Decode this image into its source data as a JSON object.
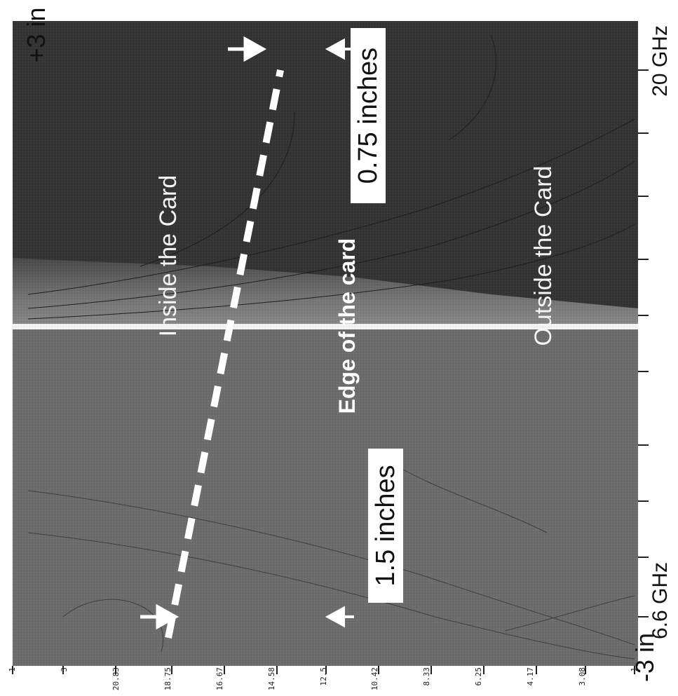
{
  "figure": {
    "inside_label": "Inside the Card",
    "outside_label": "Outside the Card",
    "edge_label": "Edge of the card",
    "label_left": "1.5 inches",
    "label_right": "0.75 inches",
    "freq_start": "6.6 GHz",
    "freq_end": "20 GHz",
    "axis_top_label": "+3 in",
    "axis_bottom_label": "-3 in",
    "ticks": [
      "1",
      "3",
      "20.83",
      "18.75",
      "16.67",
      "14.58",
      "12.5",
      "10.42",
      "8.33",
      "6.25",
      "4.17",
      "3.08",
      "1"
    ],
    "colors": {
      "inside": "#343434",
      "outside": "#6c6c6c",
      "edge_band": "#9a9a9a",
      "dashed_line": "#ffffff"
    }
  }
}
